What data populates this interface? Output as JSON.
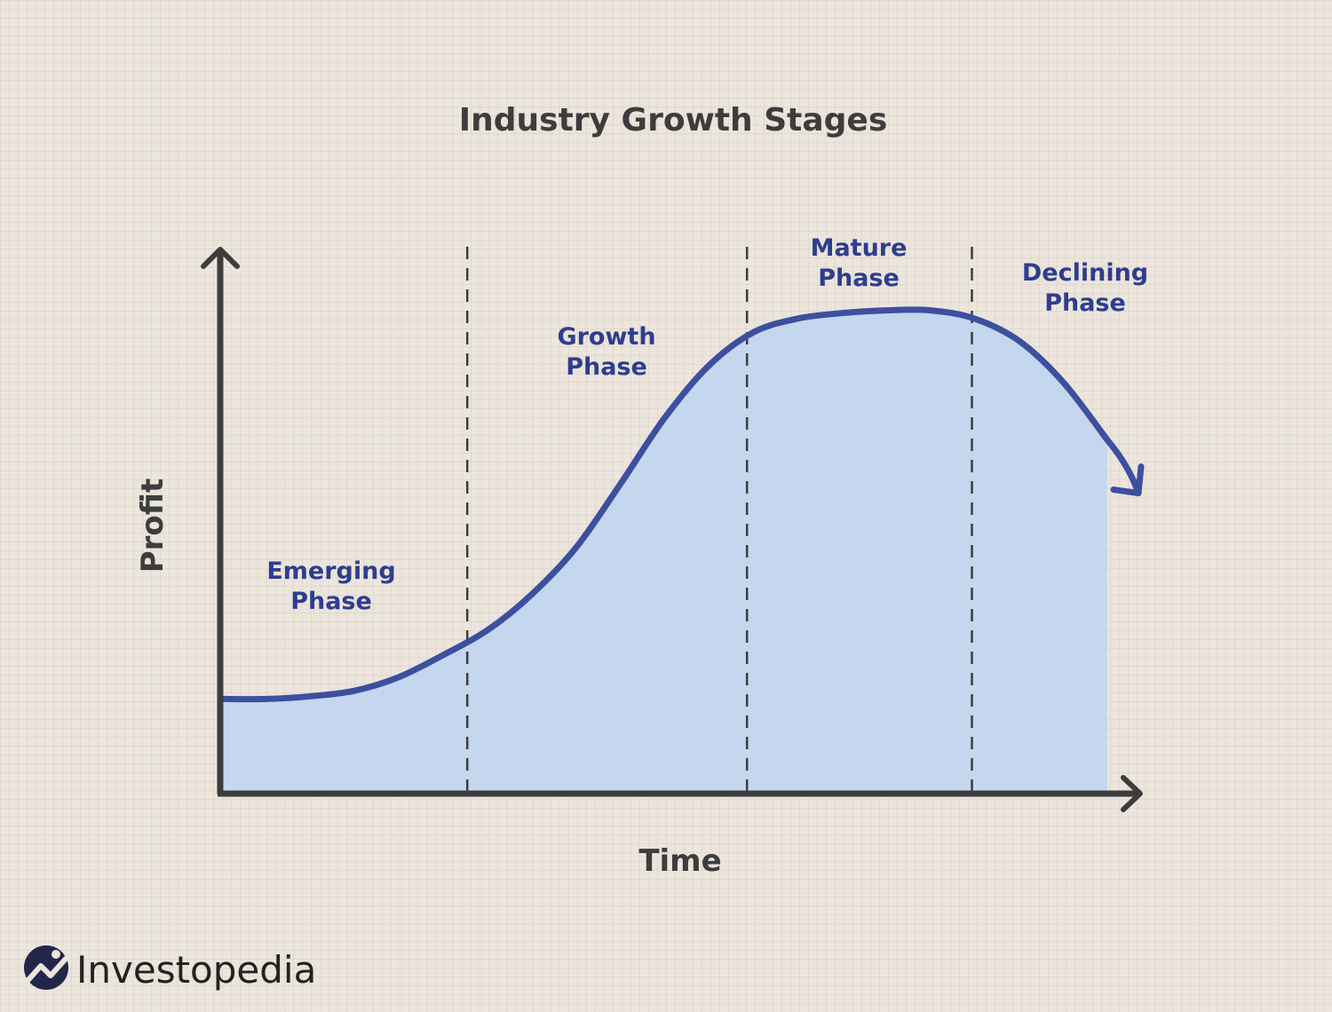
{
  "chart_data": {
    "type": "area",
    "title": "Industry Growth Stages",
    "xlabel": "Time",
    "ylabel": "Profit",
    "xlim": [
      0,
      100
    ],
    "ylim": [
      0,
      100
    ],
    "grid": false,
    "series": [
      {
        "name": "Profit",
        "x": [
          0,
          5,
          10,
          15,
          20,
          25,
          30,
          35,
          40,
          45,
          50,
          55,
          60,
          65,
          70,
          75,
          80,
          85,
          90,
          95,
          100
        ],
        "y": [
          17,
          17,
          17.5,
          18.5,
          21,
          25,
          29.5,
          36,
          44.5,
          56,
          68,
          77.5,
          83.5,
          86,
          87,
          87.5,
          87.5,
          86,
          82,
          74.5,
          64
        ]
      }
    ],
    "phases": [
      {
        "name": "emerging",
        "lines": [
          "Emerging",
          "Phase"
        ],
        "x_start": 0,
        "x_end": 27.7
      },
      {
        "name": "growth",
        "lines": [
          "Growth",
          "Phase"
        ],
        "x_start": 27.7,
        "x_end": 59.3
      },
      {
        "name": "mature",
        "lines": [
          "Mature",
          "Phase"
        ],
        "x_start": 59.3,
        "x_end": 84.7
      },
      {
        "name": "declining",
        "lines": [
          "Declining",
          "Phase"
        ],
        "x_start": 84.7,
        "x_end": 100
      }
    ],
    "phase_dividers": [
      27.7,
      59.3,
      84.7
    ],
    "colors": {
      "line": "#3d4f9f",
      "fill": "#c5d7ee",
      "axis": "#3d3d3d",
      "label": "#2e3d8f"
    }
  },
  "brand": {
    "name": "Investopedia",
    "logo_icon": "investopedia-logo-icon"
  }
}
